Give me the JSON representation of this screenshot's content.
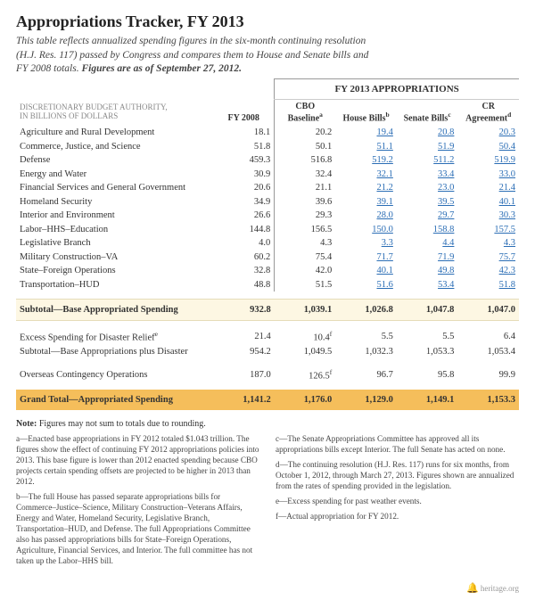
{
  "title": "Appropriations Tracker, FY 2013",
  "subtitle_1": "This table reflects annualized spending figures in the six-month continuing resolution",
  "subtitle_2": "(H.J. Res. 117) passed by Congress and compares them to House and Senate bills and",
  "subtitle_3": "FY 2008 totals. ",
  "subtitle_bold": "Figures are as of September 27, 2012.",
  "discretionary_1": "DISCRETIONARY BUDGET AUTHORITY,",
  "discretionary_2": "IN BILLIONS OF DOLLARS",
  "superheader": "FY 2013 APPROPRIATIONS",
  "colh_fy2008": "FY 2008",
  "colh_cbo_1": "CBO",
  "colh_cbo_2": "Baseline",
  "colh_house": "House Bills",
  "colh_senate": "Senate Bills",
  "colh_cr_1": "CR",
  "colh_cr_2": "Agreement",
  "sup_a": "a",
  "sup_b": "b",
  "sup_c": "c",
  "sup_d": "d",
  "sup_e": "e",
  "sup_f": "f",
  "r1": {
    "label": "Agriculture and Rural Development",
    "fy08": "18.1",
    "cbo": "20.2",
    "house": "19.4",
    "senate": "20.8",
    "cr": "20.3"
  },
  "r2": {
    "label": "Commerce, Justice, and Science",
    "fy08": "51.8",
    "cbo": "50.1",
    "house": "51.1",
    "senate": "51.9",
    "cr": "50.4"
  },
  "r3": {
    "label": "Defense",
    "fy08": "459.3",
    "cbo": "516.8",
    "house": "519.2",
    "senate": "511.2",
    "cr": "519.9"
  },
  "r4": {
    "label": "Energy and Water",
    "fy08": "30.9",
    "cbo": "32.4",
    "house": "32.1",
    "senate": "33.4",
    "cr": "33.0"
  },
  "r5": {
    "label": "Financial Services and General Government",
    "fy08": "20.6",
    "cbo": "21.1",
    "house": "21.2",
    "senate": "23.0",
    "cr": "21.4"
  },
  "r6": {
    "label": "Homeland Security",
    "fy08": "34.9",
    "cbo": "39.6",
    "house": "39.1",
    "senate": "39.5",
    "cr": "40.1"
  },
  "r7": {
    "label": "Interior and Environment",
    "fy08": "26.6",
    "cbo": "29.3",
    "house": "28.0",
    "senate": "29.7",
    "cr": "30.3"
  },
  "r8": {
    "label": "Labor–HHS–Education",
    "fy08": "144.8",
    "cbo": "156.5",
    "house": "150.0",
    "senate": "158.8",
    "cr": "157.5"
  },
  "r9": {
    "label": "Legislative Branch",
    "fy08": "4.0",
    "cbo": "4.3",
    "house": "3.3",
    "senate": "4.4",
    "cr": "4.3"
  },
  "r10": {
    "label": "Military Construction–VA",
    "fy08": "60.2",
    "cbo": "75.4",
    "house": "71.7",
    "senate": "71.9",
    "cr": "75.7"
  },
  "r11": {
    "label": "State–Foreign Operations",
    "fy08": "32.8",
    "cbo": "42.0",
    "house": "40.1",
    "senate": "49.8",
    "cr": "42.3"
  },
  "r12": {
    "label": "Transportation–HUD",
    "fy08": "48.8",
    "cbo": "51.5",
    "house": "51.6",
    "senate": "53.4",
    "cr": "51.8"
  },
  "subtotal1": {
    "label": "Subtotal—Base Appropriated Spending",
    "fy08": "932.8",
    "cbo": "1,039.1",
    "house": "1,026.8",
    "senate": "1,047.8",
    "cr": "1,047.0"
  },
  "excess": {
    "label": "Excess Spending for Disaster Relief",
    "fy08": "21.4",
    "cbo": "10.4",
    "house": "5.5",
    "senate": "5.5",
    "cr": "6.4"
  },
  "subtotal2": {
    "label": "Subtotal—Base Appropriations plus Disaster",
    "fy08": "954.2",
    "cbo": "1,049.5",
    "house": "1,032.3",
    "senate": "1,053.3",
    "cr": "1,053.4"
  },
  "oco": {
    "label": "Overseas Contingency Operations",
    "fy08": "187.0",
    "cbo": "126.5",
    "house": "96.7",
    "senate": "95.8",
    "cr": "99.9"
  },
  "grand": {
    "label": "Grand Total—Appropriated Spending",
    "fy08": "1,141.2",
    "cbo": "1,176.0",
    "house": "1,129.0",
    "senate": "1,149.1",
    "cr": "1,153.3"
  },
  "note_bold": "Note:",
  "note_text": " Figures may not sum to totals due to rounding.",
  "fn_a": "a—Enacted base appropriations in FY 2012 totaled $1.043 trillion. The figures show the effect of continuing FY 2012 appropriations policies into 2013. This base figure is lower than 2012 enacted spending because CBO projects certain spending offsets are projected to be higher in 2013 than 2012.",
  "fn_b": "b—The full House has passed separate appropriations bills for Commerce–Justice–Science, Military Construction–Veterans Affairs, Energy and Water, Homeland Security, Legislative Branch, Transportation–HUD, and Defense. The full Appropriations Committee also has passed appropriations bills for State–Foreign Operations, Agriculture, Financial Services, and Interior. The full committee has not taken up the Labor–HHS bill.",
  "fn_c": "c—The Senate Appropriations Committee has approved all its appropriations bills except Interior. The full Senate has acted on none.",
  "fn_d": "d—The continuing resolution (H.J. Res. 117) runs for six months, from October 1, 2012, through March 27, 2013. Figures shown are annualized from the rates of spending provided in the legislation.",
  "fn_e": "e—Excess spending for past weather events.",
  "fn_f": "f—Actual appropriation for FY 2012.",
  "brand": "heritage.org"
}
